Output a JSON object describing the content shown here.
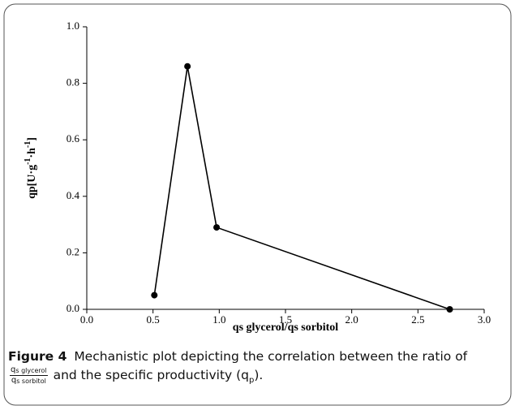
{
  "chart_data": {
    "type": "line",
    "x_label": "qs glycerol/qs sorbitol",
    "y_label": [
      "qp[U·g",
      "-1",
      "·h",
      "-1",
      "]"
    ],
    "x": [
      0.51,
      0.76,
      0.98,
      2.74
    ],
    "series": [
      {
        "values": [
          0.05,
          0.86,
          0.29,
          0.0
        ],
        "color": "#000000"
      }
    ],
    "xlim": [
      0,
      3
    ],
    "xticks": [
      {
        "value": 0,
        "label": "0.0"
      },
      {
        "value": 0.5,
        "label": "0.5"
      },
      {
        "value": 1,
        "label": "1.0"
      },
      {
        "value": 1.5,
        "label": "1.5"
      },
      {
        "value": 2,
        "label": "2.0"
      },
      {
        "value": 2.5,
        "label": "2.5"
      },
      {
        "value": 3,
        "label": "3.0"
      }
    ],
    "ylim": [
      0,
      1
    ],
    "yticks": [
      {
        "value": 0,
        "label": "0.0"
      },
      {
        "value": 0.2,
        "label": "0.2"
      },
      {
        "value": 0.4,
        "label": "0.4"
      },
      {
        "value": 0.6,
        "label": "0.6"
      },
      {
        "value": 0.8,
        "label": "0.8"
      },
      {
        "value": 1,
        "label": "1.0"
      }
    ],
    "grid": false
  },
  "caption": {
    "label": "Figure 4",
    "text": "Mechanistic plot depicting the correlation between the ratio of",
    "numerator": [
      "q",
      "s glycerol"
    ],
    "denominator": [
      "q",
      "s sorbitol"
    ],
    "text2": "and the specific productivity (q",
    "sub": "p",
    "end": ")."
  }
}
